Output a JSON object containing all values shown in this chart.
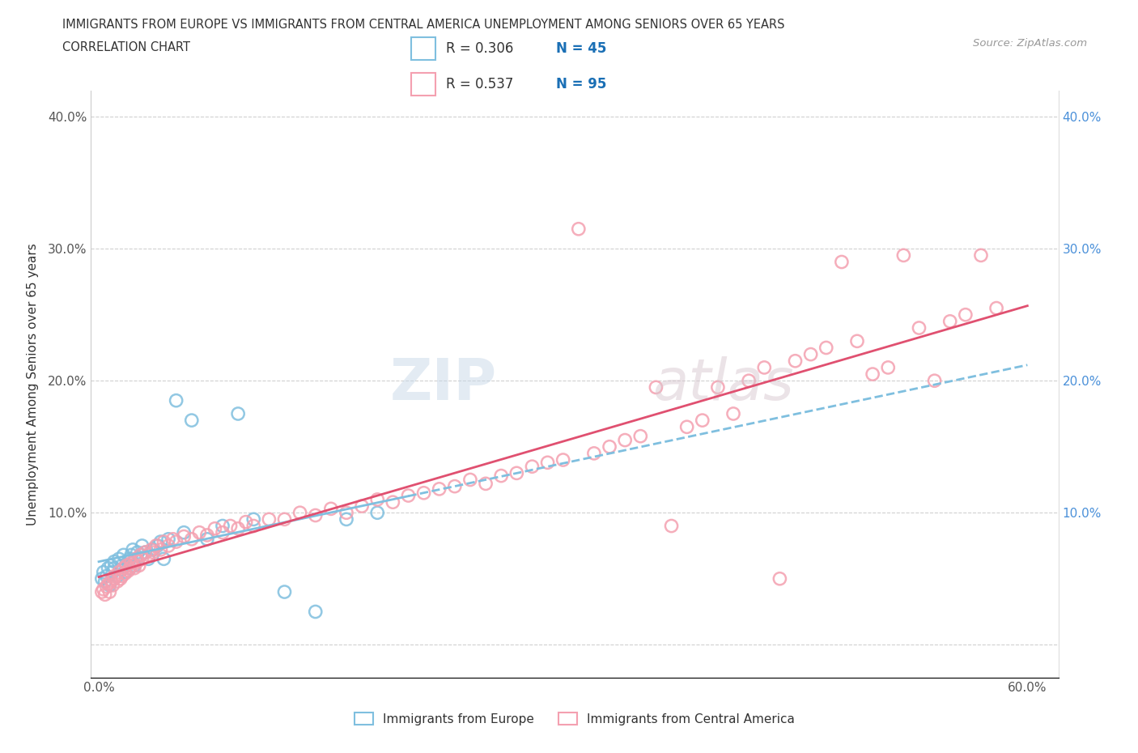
{
  "title_line1": "IMMIGRANTS FROM EUROPE VS IMMIGRANTS FROM CENTRAL AMERICA UNEMPLOYMENT AMONG SENIORS OVER 65 YEARS",
  "title_line2": "CORRELATION CHART",
  "source_text": "Source: ZipAtlas.com",
  "ylabel": "Unemployment Among Seniors over 65 years",
  "xmin": 0.0,
  "xmax": 0.6,
  "ymin": -0.02,
  "ymax": 0.42,
  "ytick_labels": [
    "",
    "10.0%",
    "20.0%",
    "30.0%",
    "40.0%"
  ],
  "ytick_vals": [
    0.0,
    0.1,
    0.2,
    0.3,
    0.4
  ],
  "xtick_vals": [
    0.0,
    0.1,
    0.2,
    0.3,
    0.4,
    0.5,
    0.6
  ],
  "legend_label1": "Immigrants from Europe",
  "legend_label2": "Immigrants from Central America",
  "legend_R1": "R = 0.306",
  "legend_N1": "N = 45",
  "legend_R2": "R = 0.537",
  "legend_N2": "N = 95",
  "color_europe": "#7fbfdf",
  "color_central_america": "#f4a0b0",
  "watermark_zip": "ZIP",
  "watermark_atlas": "atlas",
  "europe_x": [
    0.002,
    0.003,
    0.004,
    0.005,
    0.006,
    0.007,
    0.008,
    0.009,
    0.01,
    0.01,
    0.012,
    0.013,
    0.015,
    0.015,
    0.016,
    0.017,
    0.018,
    0.019,
    0.02,
    0.02,
    0.021,
    0.022,
    0.023,
    0.024,
    0.025,
    0.027,
    0.028,
    0.03,
    0.032,
    0.035,
    0.038,
    0.04,
    0.042,
    0.045,
    0.05,
    0.055,
    0.06,
    0.07,
    0.08,
    0.09,
    0.1,
    0.12,
    0.14,
    0.16,
    0.18
  ],
  "europe_y": [
    0.05,
    0.055,
    0.048,
    0.052,
    0.058,
    0.045,
    0.06,
    0.055,
    0.063,
    0.058,
    0.052,
    0.065,
    0.06,
    0.057,
    0.068,
    0.055,
    0.06,
    0.063,
    0.065,
    0.058,
    0.068,
    0.072,
    0.06,
    0.065,
    0.07,
    0.068,
    0.075,
    0.07,
    0.065,
    0.072,
    0.075,
    0.078,
    0.065,
    0.08,
    0.185,
    0.085,
    0.17,
    0.08,
    0.09,
    0.175,
    0.095,
    0.04,
    0.025,
    0.095,
    0.1
  ],
  "central_x": [
    0.002,
    0.003,
    0.004,
    0.005,
    0.006,
    0.007,
    0.008,
    0.009,
    0.01,
    0.01,
    0.012,
    0.013,
    0.014,
    0.015,
    0.016,
    0.017,
    0.018,
    0.019,
    0.02,
    0.021,
    0.022,
    0.023,
    0.024,
    0.025,
    0.026,
    0.027,
    0.028,
    0.03,
    0.032,
    0.034,
    0.035,
    0.037,
    0.04,
    0.042,
    0.045,
    0.048,
    0.05,
    0.055,
    0.06,
    0.065,
    0.07,
    0.075,
    0.08,
    0.085,
    0.09,
    0.095,
    0.1,
    0.11,
    0.12,
    0.13,
    0.14,
    0.15,
    0.16,
    0.17,
    0.18,
    0.19,
    0.2,
    0.21,
    0.22,
    0.23,
    0.24,
    0.25,
    0.26,
    0.27,
    0.28,
    0.29,
    0.3,
    0.31,
    0.32,
    0.33,
    0.34,
    0.35,
    0.36,
    0.37,
    0.38,
    0.39,
    0.4,
    0.41,
    0.42,
    0.43,
    0.44,
    0.45,
    0.46,
    0.47,
    0.48,
    0.49,
    0.5,
    0.51,
    0.52,
    0.53,
    0.54,
    0.55,
    0.56,
    0.57,
    0.58
  ],
  "central_y": [
    0.04,
    0.042,
    0.038,
    0.044,
    0.046,
    0.04,
    0.048,
    0.045,
    0.05,
    0.052,
    0.048,
    0.055,
    0.05,
    0.052,
    0.058,
    0.054,
    0.06,
    0.056,
    0.058,
    0.062,
    0.06,
    0.058,
    0.065,
    0.063,
    0.06,
    0.068,
    0.065,
    0.07,
    0.068,
    0.072,
    0.07,
    0.075,
    0.072,
    0.078,
    0.075,
    0.08,
    0.078,
    0.082,
    0.08,
    0.085,
    0.083,
    0.088,
    0.085,
    0.09,
    0.088,
    0.093,
    0.09,
    0.095,
    0.095,
    0.1,
    0.098,
    0.103,
    0.1,
    0.105,
    0.11,
    0.108,
    0.113,
    0.115,
    0.118,
    0.12,
    0.125,
    0.122,
    0.128,
    0.13,
    0.135,
    0.138,
    0.14,
    0.315,
    0.145,
    0.15,
    0.155,
    0.158,
    0.195,
    0.09,
    0.165,
    0.17,
    0.195,
    0.175,
    0.2,
    0.21,
    0.05,
    0.215,
    0.22,
    0.225,
    0.29,
    0.23,
    0.205,
    0.21,
    0.295,
    0.24,
    0.2,
    0.245,
    0.25,
    0.295,
    0.255
  ]
}
